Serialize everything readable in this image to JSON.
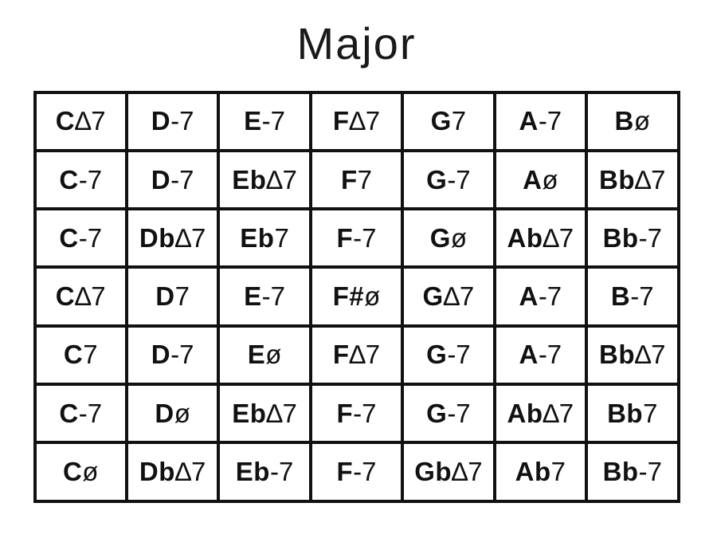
{
  "title": "Major",
  "colors": {
    "text": "#111111",
    "border": "#111111",
    "background": "#ffffff"
  },
  "table": {
    "columns": 7,
    "rows": [
      [
        {
          "root": "C",
          "suffix": "∆7"
        },
        {
          "root": "D",
          "suffix": "-7"
        },
        {
          "root": "E",
          "suffix": "-7"
        },
        {
          "root": "F",
          "suffix": "∆7"
        },
        {
          "root": "G",
          "suffix": "7"
        },
        {
          "root": "A",
          "suffix": "-7"
        },
        {
          "root": "B",
          "suffix": "ø"
        }
      ],
      [
        {
          "root": "C",
          "suffix": "-7"
        },
        {
          "root": "D",
          "suffix": "-7"
        },
        {
          "root": "Eb",
          "suffix": "∆7"
        },
        {
          "root": "F",
          "suffix": "7"
        },
        {
          "root": "G",
          "suffix": "-7"
        },
        {
          "root": "A",
          "suffix": "ø"
        },
        {
          "root": "Bb",
          "suffix": "∆7"
        }
      ],
      [
        {
          "root": "C",
          "suffix": "-7"
        },
        {
          "root": "Db",
          "suffix": "∆7"
        },
        {
          "root": "Eb",
          "suffix": "7"
        },
        {
          "root": "F",
          "suffix": "-7"
        },
        {
          "root": "G",
          "suffix": "ø"
        },
        {
          "root": "Ab",
          "suffix": "∆7"
        },
        {
          "root": "Bb",
          "suffix": "-7"
        }
      ],
      [
        {
          "root": "C",
          "suffix": "∆7"
        },
        {
          "root": "D",
          "suffix": "7"
        },
        {
          "root": "E",
          "suffix": "-7"
        },
        {
          "root": "F#",
          "suffix": "ø"
        },
        {
          "root": "G",
          "suffix": "∆7"
        },
        {
          "root": "A",
          "suffix": "-7"
        },
        {
          "root": "B",
          "suffix": "-7"
        }
      ],
      [
        {
          "root": "C",
          "suffix": "7"
        },
        {
          "root": "D",
          "suffix": "-7"
        },
        {
          "root": "E",
          "suffix": "ø"
        },
        {
          "root": "F",
          "suffix": "∆7"
        },
        {
          "root": "G",
          "suffix": "-7"
        },
        {
          "root": "A",
          "suffix": "-7"
        },
        {
          "root": "Bb",
          "suffix": "∆7"
        }
      ],
      [
        {
          "root": "C",
          "suffix": "-7"
        },
        {
          "root": "D",
          "suffix": "ø"
        },
        {
          "root": "Eb",
          "suffix": "∆7"
        },
        {
          "root": "F",
          "suffix": "-7"
        },
        {
          "root": "G",
          "suffix": "-7"
        },
        {
          "root": "Ab",
          "suffix": "∆7"
        },
        {
          "root": "Bb",
          "suffix": "7"
        }
      ],
      [
        {
          "root": "C",
          "suffix": "ø"
        },
        {
          "root": "Db",
          "suffix": "∆7"
        },
        {
          "root": "Eb",
          "suffix": "-7"
        },
        {
          "root": "F",
          "suffix": "-7"
        },
        {
          "root": "Gb",
          "suffix": "∆7"
        },
        {
          "root": "Ab",
          "suffix": "7"
        },
        {
          "root": "Bb",
          "suffix": "-7"
        }
      ]
    ]
  }
}
